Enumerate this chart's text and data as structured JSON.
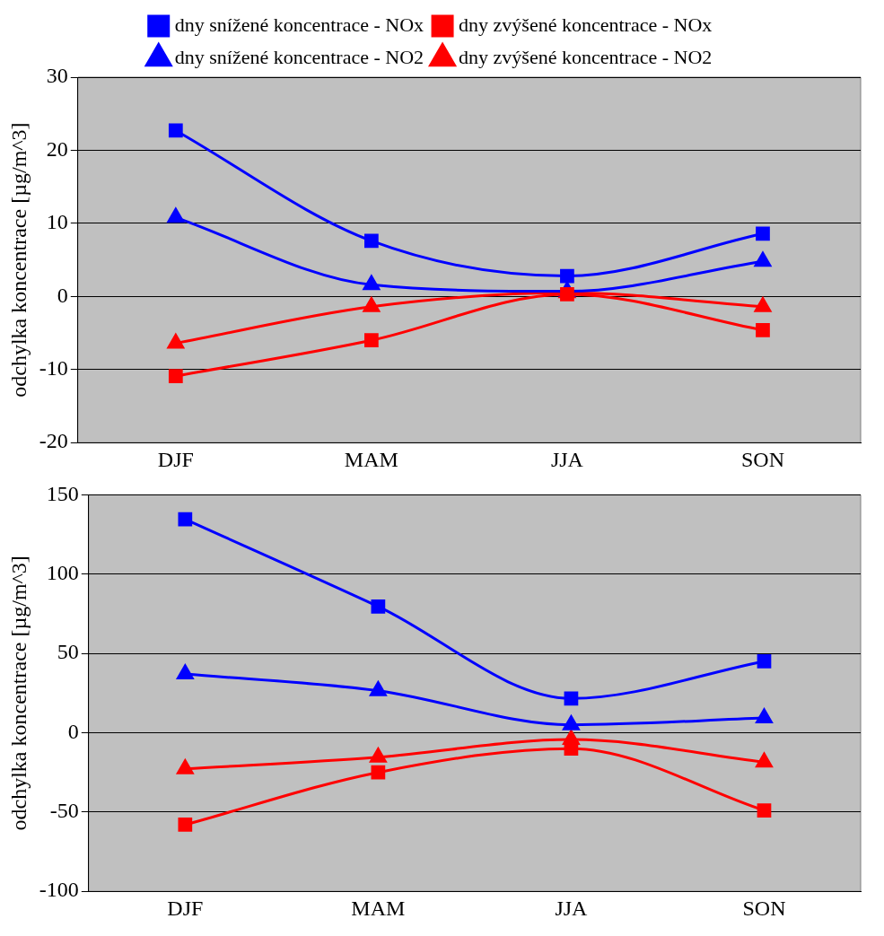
{
  "chart_data": [
    {
      "type": "line",
      "ylabel": "odchylka koncentrace [µg/m^3]",
      "categories": [
        "DJF",
        "MAM",
        "JJA",
        "SON"
      ],
      "ylim": [
        -20,
        30
      ],
      "yticks": [
        -20,
        -10,
        0,
        10,
        20,
        30
      ],
      "grid": "y",
      "legend": "top",
      "series": [
        {
          "name": "dny snížené koncentrace - NOx",
          "color": "#0000ff",
          "marker": "square",
          "values": [
            22.7,
            7.6,
            2.8,
            8.6
          ]
        },
        {
          "name": "dny zvýšené koncentrace - NOx",
          "color": "#ff0000",
          "marker": "square",
          "values": [
            -10.9,
            -6.0,
            0.3,
            -4.6
          ]
        },
        {
          "name": "dny snížené koncentrace - NO2",
          "color": "#0000ff",
          "marker": "triangle",
          "values": [
            10.8,
            1.6,
            0.7,
            4.8
          ]
        },
        {
          "name": "dny zvýšené koncentrace - NO2",
          "color": "#ff0000",
          "marker": "triangle",
          "values": [
            -6.4,
            -1.4,
            0.5,
            -1.4
          ]
        }
      ]
    },
    {
      "type": "line",
      "ylabel": "odchylka koncentrace [µg/m^3]",
      "categories": [
        "DJF",
        "MAM",
        "JJA",
        "SON"
      ],
      "ylim": [
        -100,
        150
      ],
      "yticks": [
        -100,
        -50,
        0,
        50,
        100,
        150
      ],
      "grid": "y",
      "legend": false,
      "series": [
        {
          "color": "#0000ff",
          "marker": "square",
          "values": [
            134.6,
            79.6,
            21.6,
            45
          ]
        },
        {
          "color": "#ff0000",
          "marker": "square",
          "values": [
            -58,
            -25,
            -10,
            -49
          ]
        },
        {
          "color": "#0000ff",
          "marker": "triangle",
          "values": [
            37,
            26.5,
            5,
            9.3
          ]
        },
        {
          "color": "#ff0000",
          "marker": "triangle",
          "values": [
            -22.8,
            -15.4,
            -4.3,
            -18.5
          ]
        }
      ]
    }
  ]
}
